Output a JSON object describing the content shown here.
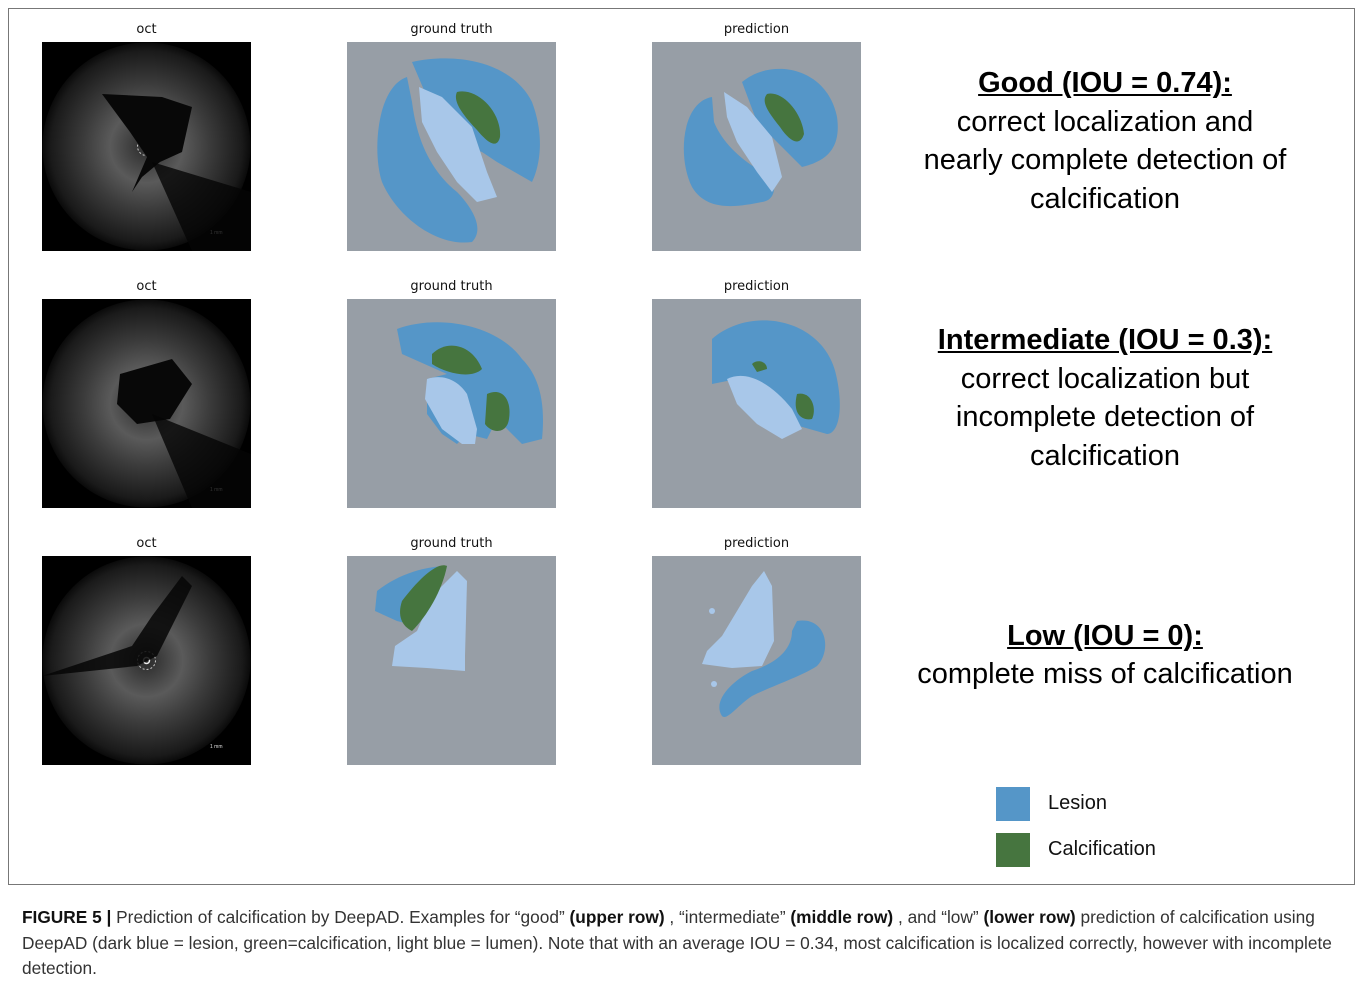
{
  "figure": {
    "rows": [
      {
        "panel_titles": [
          "oct",
          "ground truth",
          "prediction"
        ],
        "heading": "Good (IOU = 0.74):",
        "lines": [
          "correct localization and",
          "nearly complete detection of",
          "calcification"
        ]
      },
      {
        "panel_titles": [
          "oct",
          "ground truth",
          "prediction"
        ],
        "heading": "Intermediate (IOU = 0.3):",
        "lines": [
          "correct localization but",
          "incomplete detection of",
          "calcification"
        ]
      },
      {
        "panel_titles": [
          "oct",
          "ground truth",
          "prediction"
        ],
        "heading": "Low (IOU = 0):",
        "lines": [
          "complete miss of calcification"
        ]
      }
    ],
    "legend": [
      {
        "label": "Lesion",
        "color": "#5596c8"
      },
      {
        "label": "Calcification",
        "color": "#46753f"
      }
    ],
    "caption": {
      "label": "FIGURE 5 |",
      "segments": [
        {
          "text": "Prediction of calcification by DeepAD. Examples for “good”",
          "bold": false
        },
        {
          "text": "(upper row)",
          "bold": true
        },
        {
          "text": ", “intermediate”",
          "bold": false
        },
        {
          "text": "(middle row)",
          "bold": true
        },
        {
          "text": ", and “low”",
          "bold": false
        },
        {
          "text": "(lower row)",
          "bold": true
        },
        {
          "text": "prediction of calcification using DeepAD (dark blue = lesion, green=calcification, light blue = lumen). Note that with an average IOU = 0.34, most calcification is localized correctly, however with incomplete detection.",
          "bold": false
        }
      ]
    }
  }
}
